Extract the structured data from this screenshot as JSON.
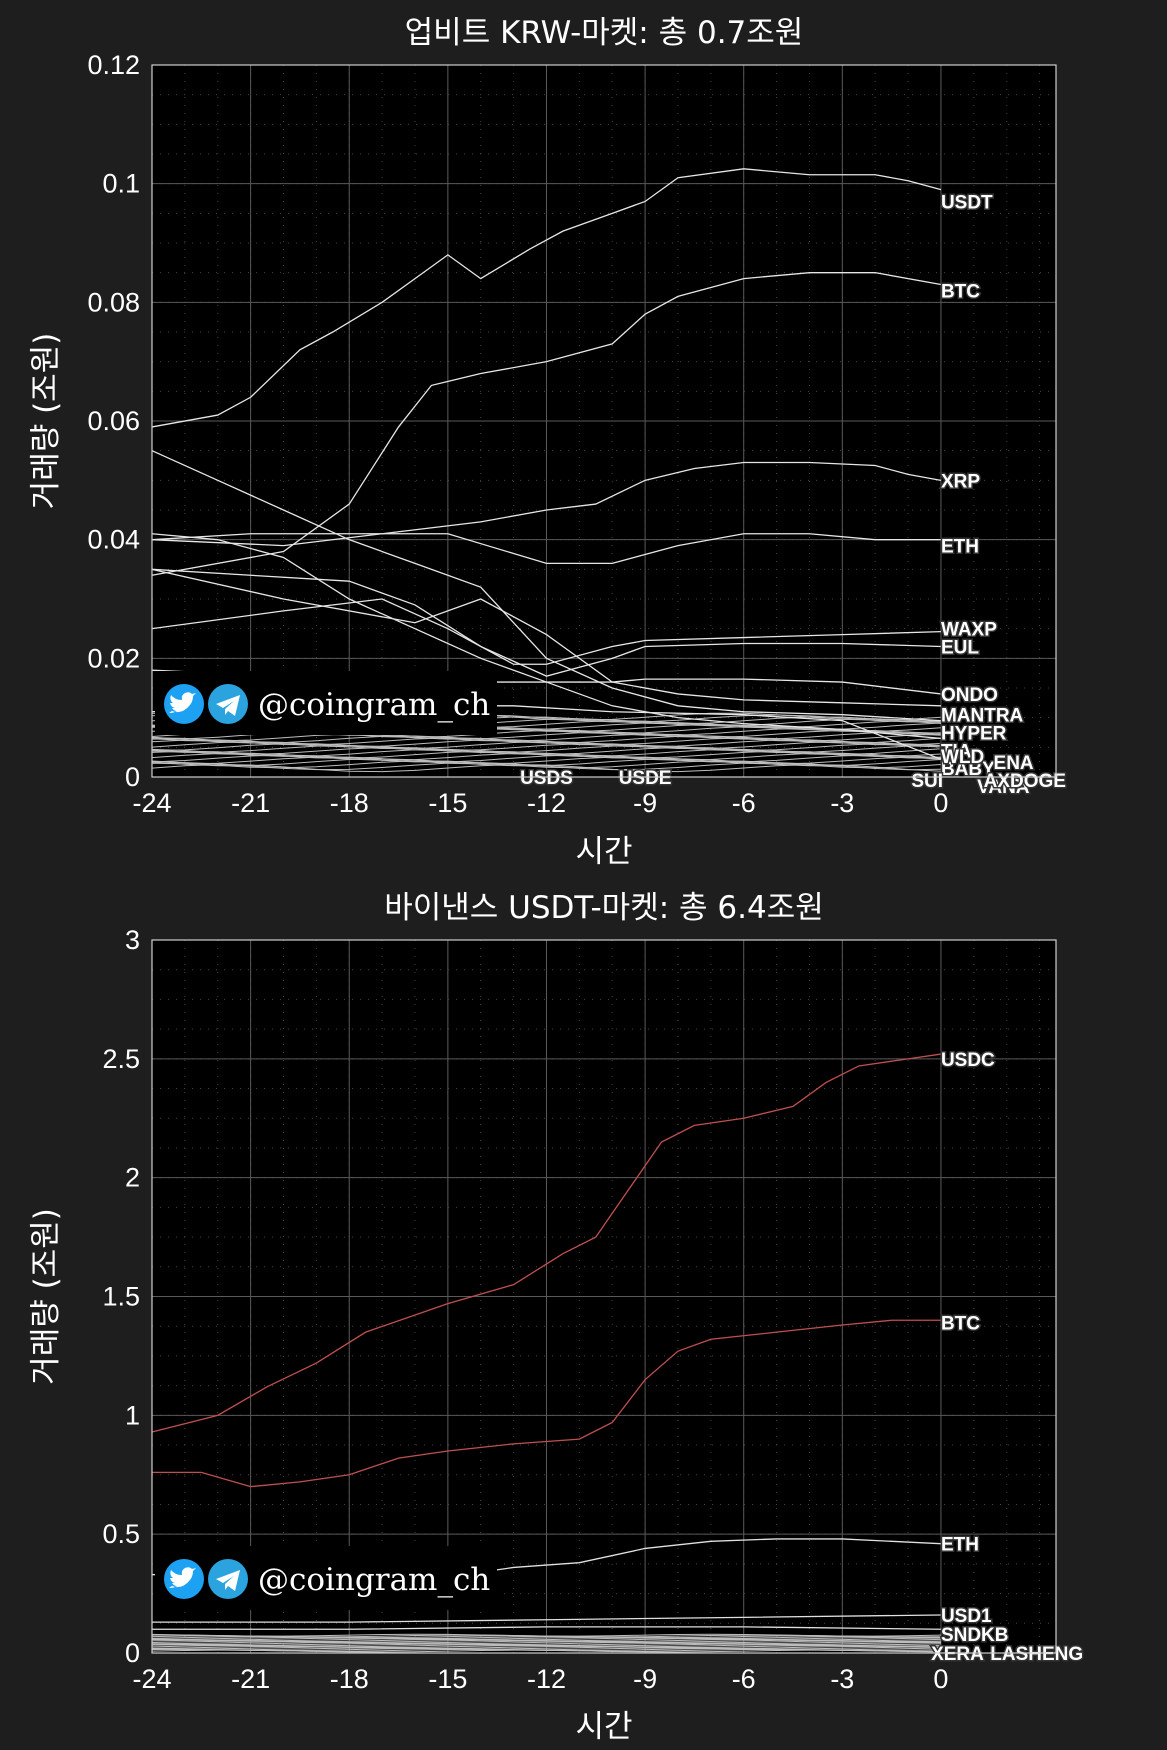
{
  "watermark": {
    "handle": "@coingram_ch",
    "icons": [
      "twitter-icon",
      "telegram-icon"
    ],
    "twitter_color": "#1da1f2",
    "telegram_color": "#2aa3df"
  },
  "chart_data": [
    {
      "type": "line",
      "title": "업비트 KRW-마켓: 총 0.7조원",
      "xlabel": "시간",
      "ylabel": "거래량 (조원)",
      "xlim": [
        -24,
        3.5
      ],
      "ylim": [
        0,
        0.12
      ],
      "xticks": [
        -24,
        -21,
        -18,
        -15,
        -12,
        -9,
        -6,
        -3,
        0
      ],
      "yticks": [
        0,
        0.02,
        0.04,
        0.06,
        0.08,
        0.1,
        0.12
      ],
      "ytick_labels": [
        "0",
        "0.02",
        "0.04",
        "0.06",
        "0.08",
        "0.1",
        "0.12"
      ],
      "grid": true,
      "line_color": "#e0e0e0",
      "series": [
        {
          "name": "USDT",
          "x": [
            -24,
            -22,
            -21,
            -19.5,
            -18.5,
            -17,
            -16,
            -15,
            -14,
            -12.5,
            -11.5,
            -10,
            -9,
            -8,
            -6,
            -4,
            -2,
            -1,
            0
          ],
          "y": [
            0.059,
            0.061,
            0.064,
            0.072,
            0.075,
            0.08,
            0.084,
            0.088,
            0.084,
            0.089,
            0.092,
            0.095,
            0.097,
            0.101,
            0.1025,
            0.1015,
            0.1015,
            0.1005,
            0.099
          ]
        },
        {
          "name": "BTC",
          "x": [
            -24,
            -20,
            -18,
            -16.5,
            -15.5,
            -14,
            -12,
            -10,
            -9,
            -8,
            -6,
            -4,
            -2,
            0
          ],
          "y": [
            0.034,
            0.038,
            0.046,
            0.059,
            0.066,
            0.068,
            0.07,
            0.073,
            0.078,
            0.081,
            0.084,
            0.085,
            0.085,
            0.083
          ]
        },
        {
          "name": "XRP",
          "x": [
            -24,
            -20,
            -17,
            -14,
            -12,
            -10.5,
            -9,
            -7.5,
            -6,
            -4,
            -2,
            -1,
            0
          ],
          "y": [
            0.04,
            0.039,
            0.041,
            0.043,
            0.045,
            0.046,
            0.05,
            0.052,
            0.053,
            0.053,
            0.0525,
            0.051,
            0.05
          ]
        },
        {
          "name": "ETH",
          "x": [
            -24,
            -21,
            -18,
            -15,
            -12,
            -10,
            -8,
            -6,
            -4,
            -2,
            0
          ],
          "y": [
            0.04,
            0.041,
            0.041,
            0.041,
            0.036,
            0.036,
            0.039,
            0.041,
            0.041,
            0.04,
            0.04
          ]
        },
        {
          "name": "WAXP",
          "x": [
            -24,
            -20,
            -17,
            -15,
            -13,
            -12,
            -10,
            -9,
            -6,
            -3,
            0
          ],
          "y": [
            0.025,
            0.028,
            0.03,
            0.025,
            0.019,
            0.019,
            0.022,
            0.023,
            0.0235,
            0.024,
            0.0245
          ]
        },
        {
          "name": "EUL",
          "x": [
            -24,
            -21,
            -18,
            -16,
            -14,
            -12,
            -10,
            -9,
            -6,
            -3,
            0
          ],
          "y": [
            0.035,
            0.034,
            0.033,
            0.029,
            0.022,
            0.017,
            0.02,
            0.022,
            0.0225,
            0.0225,
            0.022
          ]
        },
        {
          "name": "ONDO",
          "x": [
            -24,
            -20,
            -16,
            -13,
            -10,
            -9,
            -6,
            -3,
            0
          ],
          "y": [
            0.018,
            0.017,
            0.016,
            0.016,
            0.016,
            0.0165,
            0.0165,
            0.016,
            0.014
          ]
        },
        {
          "name": "MANTRA",
          "x": [
            -24,
            -20,
            -16,
            -14,
            -12,
            -10,
            -8,
            -6,
            -3,
            0
          ],
          "y": [
            0.035,
            0.03,
            0.026,
            0.03,
            0.024,
            0.016,
            0.014,
            0.013,
            0.0125,
            0.012
          ]
        },
        {
          "name": "HYPER",
          "x": [
            -24,
            -22,
            -20,
            -18,
            -16,
            -14,
            -12,
            -10,
            -8,
            -6,
            -3,
            0
          ],
          "y": [
            0.055,
            0.05,
            0.045,
            0.04,
            0.036,
            0.032,
            0.02,
            0.015,
            0.012,
            0.011,
            0.0105,
            0.0095
          ]
        },
        {
          "name": "BABY",
          "x": [
            -24,
            -22,
            -20,
            -18,
            -16,
            -14,
            -12,
            -10,
            -8,
            -6,
            -3,
            0
          ],
          "y": [
            0.041,
            0.04,
            0.037,
            0.03,
            0.025,
            0.02,
            0.016,
            0.012,
            0.01,
            0.009,
            0.008,
            0.0065
          ]
        },
        {
          "name": "SUI",
          "x": [
            -24,
            -20,
            -16,
            -13,
            -10,
            -6,
            -3,
            0
          ],
          "y": [
            0.011,
            0.012,
            0.012,
            0.012,
            0.011,
            0.0105,
            0.0095,
            0.003
          ]
        }
      ],
      "end_labels": [
        "USDT",
        "BTC",
        "XRP",
        "ETH",
        "WAXP",
        "EUL",
        "ONDO",
        "MANTRA",
        "HYPER",
        "TIA",
        "BABY",
        "WLD",
        "SUI",
        "VANA",
        "AXS",
        "ENA",
        "DOGE"
      ],
      "x_labels": [
        "USDS",
        "USDE"
      ]
    },
    {
      "type": "line",
      "title": "바이낸스 USDT-마켓: 총 6.4조원",
      "xlabel": "시간",
      "ylabel": "거래량 (조원)",
      "xlim": [
        -24,
        3.5
      ],
      "ylim": [
        0,
        3
      ],
      "xticks": [
        -24,
        -21,
        -18,
        -15,
        -12,
        -9,
        -6,
        -3,
        0
      ],
      "yticks": [
        0,
        0.5,
        1,
        1.5,
        2,
        2.5,
        3
      ],
      "ytick_labels": [
        "0",
        "0.5",
        "1",
        "1.5",
        "2",
        "2.5",
        "3"
      ],
      "grid": true,
      "colors": {
        "highlight": "#c05050",
        "other": "#e0e0e0"
      },
      "series": [
        {
          "name": "USDC",
          "x": [
            -24,
            -22,
            -20.5,
            -19,
            -17.5,
            -15,
            -13,
            -11.5,
            -10.5,
            -9.5,
            -8.5,
            -7.5,
            -6,
            -4.5,
            -3.5,
            -2.5,
            -1,
            0
          ],
          "y": [
            0.93,
            1.0,
            1.12,
            1.22,
            1.35,
            1.47,
            1.55,
            1.68,
            1.75,
            1.95,
            2.15,
            2.22,
            2.25,
            2.3,
            2.4,
            2.47,
            2.5,
            2.52
          ]
        },
        {
          "name": "BTC",
          "x": [
            -24,
            -22.5,
            -21,
            -19.5,
            -18,
            -16.5,
            -15,
            -13,
            -11,
            -10,
            -9,
            -8,
            -7,
            -5,
            -3,
            -1.5,
            0
          ],
          "y": [
            0.76,
            0.76,
            0.7,
            0.72,
            0.75,
            0.82,
            0.85,
            0.88,
            0.9,
            0.97,
            1.15,
            1.27,
            1.32,
            1.35,
            1.38,
            1.4,
            1.4
          ]
        },
        {
          "name": "ETH",
          "x": [
            -24,
            -22,
            -21,
            -19,
            -17,
            -15,
            -13,
            -11,
            -9,
            -7,
            -5,
            -3,
            -1.5,
            0
          ],
          "y": [
            0.33,
            0.32,
            0.29,
            0.28,
            0.29,
            0.32,
            0.36,
            0.38,
            0.44,
            0.47,
            0.48,
            0.48,
            0.47,
            0.46
          ]
        },
        {
          "name": "USD1",
          "x": [
            -24,
            -18,
            -12,
            -6,
            0
          ],
          "y": [
            0.13,
            0.13,
            0.14,
            0.15,
            0.16
          ]
        },
        {
          "name": "SNDKB",
          "x": [
            -24,
            -18,
            -12,
            -6,
            0
          ],
          "y": [
            0.1,
            0.1,
            0.11,
            0.11,
            0.1
          ]
        }
      ],
      "end_labels": [
        "USDC",
        "BTC",
        "ETH",
        "USD1",
        "SNDKB",
        "XERA",
        "LASHENG"
      ]
    }
  ]
}
